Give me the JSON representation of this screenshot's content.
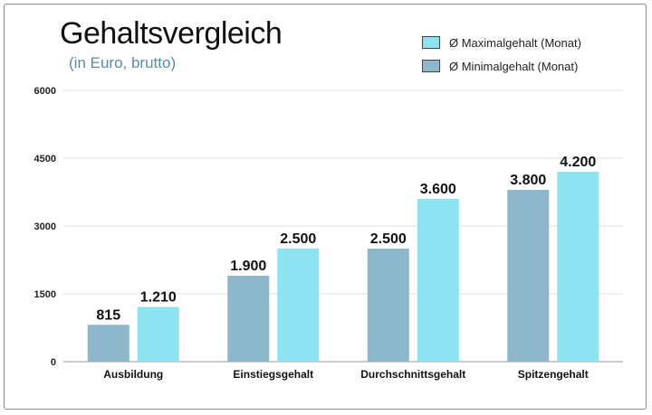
{
  "chart_data": {
    "type": "bar",
    "title": "Gehaltsvergleich",
    "subtitle": "(in Euro, brutto)",
    "categories": [
      "Ausbildung",
      "Einstiegsgehalt",
      "Durchschnittsgehalt",
      "Spitzengehalt"
    ],
    "series": [
      {
        "name": "Ø Minimalgehalt (Monat)",
        "values": [
          815,
          1900,
          2500,
          3800
        ],
        "labels": [
          "815",
          "1.900",
          "2.500",
          "3.800"
        ],
        "color": "#8db7ca"
      },
      {
        "name": "Ø Maximalgehalt (Monat)",
        "values": [
          1210,
          2500,
          3600,
          4200
        ],
        "labels": [
          "1.210",
          "2.500",
          "3.600",
          "4.200"
        ],
        "color": "#8de3f0"
      }
    ],
    "ylim": [
      0,
      6000
    ],
    "yticks": [
      "0",
      "1500",
      "3000",
      "4500",
      "6000"
    ],
    "grid": true,
    "legend_position": "top-right",
    "legend_order": [
      1,
      0
    ]
  }
}
